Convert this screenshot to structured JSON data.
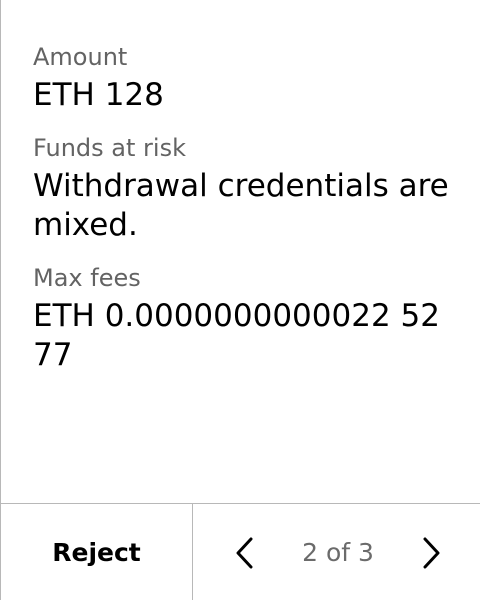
{
  "fields": [
    {
      "label": "Amount",
      "value": "ETH 128"
    },
    {
      "label": "Funds at risk",
      "value": "Withdrawal credentials are mixed."
    },
    {
      "label": "Max fees",
      "value": "ETH 0.0000000000022 5277"
    }
  ],
  "footer": {
    "reject_label": "Reject",
    "pager_text": "2 of 3",
    "prev_icon": "chevron-left-icon",
    "next_icon": "chevron-right-icon"
  },
  "colors": {
    "label": "#636363",
    "value": "#000000",
    "divider": "#b8b8b8",
    "pager_text": "#6b6b6b"
  }
}
